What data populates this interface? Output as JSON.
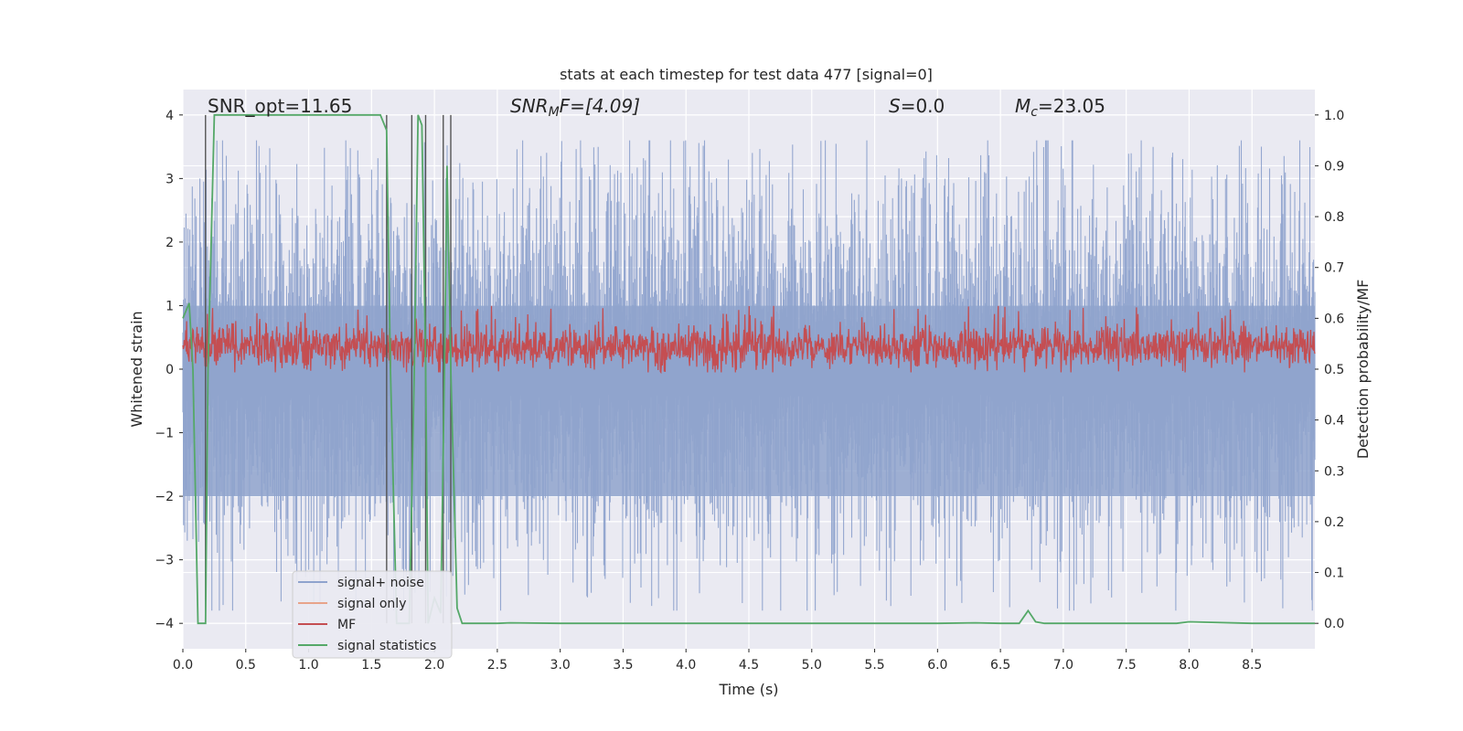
{
  "chart_data": {
    "type": "line",
    "title": "stats at each timestep for test data 477 [signal=0]",
    "xlabel": "Time (s)",
    "ylabel": "Whitened strain",
    "y2label": "Detection probability/MF",
    "xlim": [
      0.0,
      9.0
    ],
    "ylim": [
      -4.4,
      4.4
    ],
    "y2lim": [
      -0.05,
      1.05
    ],
    "xticks": [
      "0.0",
      "0.5",
      "1.0",
      "1.5",
      "2.0",
      "2.5",
      "3.0",
      "3.5",
      "4.0",
      "4.5",
      "5.0",
      "5.5",
      "6.0",
      "6.5",
      "7.0",
      "7.5",
      "8.0",
      "8.5"
    ],
    "xtick_values": [
      0.0,
      0.5,
      1.0,
      1.5,
      2.0,
      2.5,
      3.0,
      3.5,
      4.0,
      4.5,
      5.0,
      5.5,
      6.0,
      6.5,
      7.0,
      7.5,
      8.0,
      8.5
    ],
    "yticks": [
      "−4",
      "−3",
      "−2",
      "−1",
      "0",
      "1",
      "2",
      "3",
      "4"
    ],
    "ytick_values": [
      -4,
      -3,
      -2,
      -1,
      0,
      1,
      2,
      3,
      4
    ],
    "y2ticks": [
      "0.0",
      "0.1",
      "0.2",
      "0.3",
      "0.4",
      "0.5",
      "0.6",
      "0.7",
      "0.8",
      "0.9",
      "1.0"
    ],
    "y2tick_values": [
      0.0,
      0.1,
      0.2,
      0.3,
      0.4,
      0.5,
      0.6,
      0.7,
      0.8,
      0.9,
      1.0
    ],
    "annotations": {
      "snr_opt": "SNR_opt=11.65",
      "snr_mf_base": "SNR",
      "snr_mf_sub": "M",
      "snr_mf_rest": "F=[4.09]",
      "s_var": "S",
      "s_rest": "=0.0",
      "mc_base": "M",
      "mc_sub": "c",
      "mc_rest": "=23.05"
    },
    "series": [
      {
        "name": "signal+ noise",
        "color": "#8fa3cd",
        "axis": "left",
        "kind": "noise",
        "amplitude_range": [
          -3.8,
          3.6
        ]
      },
      {
        "name": "signal only",
        "color": "#e8a48a",
        "axis": "left",
        "kind": "flat",
        "values": []
      },
      {
        "name": "MF",
        "color": "#c44e52",
        "axis": "left",
        "kind": "mf",
        "center": 0.35,
        "range": [
          -0.05,
          1.0
        ]
      },
      {
        "name": "signal statistics",
        "color": "#55a868",
        "axis": "right",
        "x": [
          0.0,
          0.05,
          0.08,
          0.12,
          0.18,
          0.2,
          0.25,
          0.3,
          0.6,
          1.0,
          1.4,
          1.57,
          1.62,
          1.65,
          1.7,
          1.8,
          1.84,
          1.87,
          1.9,
          1.93,
          1.95,
          2.0,
          2.05,
          2.08,
          2.1,
          2.13,
          2.18,
          2.22,
          2.3,
          2.5,
          2.6,
          3.0,
          4.0,
          5.0,
          6.0,
          6.3,
          6.5,
          6.65,
          6.72,
          6.78,
          6.85,
          7.0,
          7.5,
          7.9,
          8.0,
          8.5,
          9.0
        ],
        "y": [
          0.6,
          0.63,
          0.5,
          0.0,
          0.0,
          0.5,
          1.0,
          1.0,
          1.0,
          1.0,
          1.0,
          1.0,
          0.97,
          0.5,
          0.0,
          0.0,
          0.5,
          1.0,
          0.98,
          0.5,
          0.0,
          0.05,
          0.02,
          0.5,
          0.9,
          0.5,
          0.03,
          0.0,
          0.0,
          0.0,
          0.001,
          0.0,
          0.0,
          0.0,
          0.0,
          0.001,
          0.0,
          0.0,
          0.025,
          0.003,
          0.0,
          0.0,
          0.0,
          0.0,
          0.003,
          0.0,
          0.0
        ]
      }
    ],
    "vertical_markers": [
      0.18,
      1.62,
      1.82,
      1.93,
      2.07,
      2.13
    ],
    "legend": {
      "placement": "lower-left",
      "entries": [
        {
          "label": "signal+ noise",
          "color": "#8fa3cd"
        },
        {
          "label": "signal only",
          "color": "#e8a48a"
        },
        {
          "label": "MF",
          "color": "#c44e52"
        },
        {
          "label": "signal statistics",
          "color": "#55a868"
        }
      ]
    },
    "grid": true
  }
}
